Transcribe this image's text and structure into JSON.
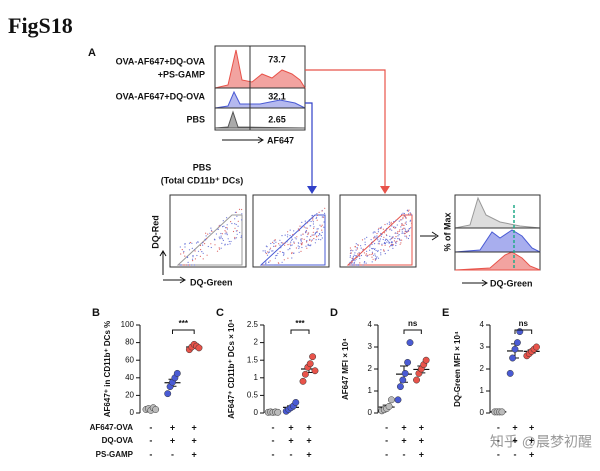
{
  "figure_label": "FigS18",
  "panel_a": {
    "label": "A",
    "histogram": {
      "rows": [
        {
          "name": [
            "OVA-AF647+DQ-OVA",
            "+PS-GAMP"
          ],
          "percent": "73.7"
        },
        {
          "name": [
            "OVA-AF647+DQ-OVA"
          ],
          "percent": "32.1"
        },
        {
          "name": [
            "PBS"
          ],
          "percent": "2.65"
        }
      ],
      "x_label": "AF647"
    },
    "flow_title": [
      "PBS",
      "(Total CD11b⁺ DCs)"
    ],
    "flow_y_label": "DQ-Red",
    "flow_x_label": "DQ-Green",
    "overlay_y_label": "% of Max",
    "overlay_x_label": "DQ-Green"
  },
  "conditions": {
    "rows": [
      {
        "name": "AF647-OVA",
        "signs": [
          "-",
          "+",
          "+"
        ]
      },
      {
        "name": "DQ-OVA",
        "signs": [
          "-",
          "+",
          "+"
        ]
      },
      {
        "name": "PS-GAMP",
        "signs": [
          "-",
          "-",
          "+"
        ]
      }
    ]
  },
  "chart_data": [
    {
      "type": "dotplot",
      "label": "B",
      "y_label": "AF647⁺ in CD11b⁺ DCs %",
      "ylim": [
        0,
        100
      ],
      "yticks": [
        0,
        20,
        40,
        60,
        80,
        100
      ],
      "significance": "***",
      "series": [
        {
          "color": "#bbbbbb",
          "values": [
            4,
            5,
            3,
            6,
            4
          ]
        },
        {
          "color": "#4a5bd4",
          "values": [
            22,
            30,
            35,
            40,
            45
          ]
        },
        {
          "color": "#e8534a",
          "values": [
            72,
            75,
            78,
            76,
            74
          ]
        }
      ]
    },
    {
      "type": "dotplot",
      "label": "C",
      "y_label": "AF647⁺ CD11b⁺ DCs × 10⁴",
      "ylim": [
        0,
        2.5
      ],
      "yticks": [
        0,
        0.5,
        1,
        1.5,
        2,
        2.5
      ],
      "significance": "***",
      "series": [
        {
          "color": "#bbbbbb",
          "values": [
            0.02,
            0.03,
            0.02,
            0.03,
            0.02
          ]
        },
        {
          "color": "#4a5bd4",
          "values": [
            0.05,
            0.1,
            0.15,
            0.2,
            0.3
          ]
        },
        {
          "color": "#e8534a",
          "values": [
            0.9,
            1.1,
            1.3,
            1.4,
            1.6,
            1.2
          ]
        }
      ]
    },
    {
      "type": "dotplot",
      "label": "D",
      "y_label": "AF647 MFI × 10⁴",
      "ylim": [
        0,
        4
      ],
      "yticks": [
        0,
        1,
        2,
        3,
        4
      ],
      "significance": "ns",
      "series": [
        {
          "color": "#bbbbbb",
          "values": [
            0.1,
            0.15,
            0.2,
            0.3,
            0.6
          ]
        },
        {
          "color": "#4a5bd4",
          "values": [
            0.6,
            1.2,
            1.5,
            1.8,
            2.3,
            3.2
          ]
        },
        {
          "color": "#e8534a",
          "values": [
            1.5,
            1.8,
            2,
            2.2,
            2.4
          ]
        }
      ]
    },
    {
      "type": "dotplot",
      "label": "E",
      "y_label": "DQ-Green MFI × 10⁴",
      "ylim": [
        0,
        4
      ],
      "yticks": [
        0,
        1,
        2,
        3,
        4
      ],
      "significance": "ns",
      "series": [
        {
          "color": "#bbbbbb",
          "values": [
            0.05,
            0.05,
            0.05,
            0.05
          ]
        },
        {
          "color": "#4a5bd4",
          "values": [
            1.8,
            2.5,
            2.9,
            3.2,
            3.7
          ]
        },
        {
          "color": "#e8534a",
          "values": [
            2.6,
            2.7,
            2.8,
            2.9,
            3
          ]
        }
      ]
    }
  ],
  "watermark": "知乎 @晨梦初醒"
}
